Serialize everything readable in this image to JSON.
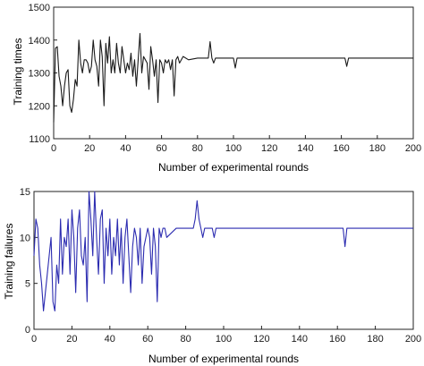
{
  "chart_data": [
    {
      "type": "line",
      "title": "",
      "xlabel": "Number of experimental rounds",
      "ylabel": "Training times",
      "xlim": [
        0,
        200
      ],
      "ylim": [
        1100,
        1500
      ],
      "x_ticks": [
        0,
        20,
        40,
        60,
        80,
        100,
        120,
        140,
        160,
        180,
        200
      ],
      "y_ticks": [
        1100,
        1200,
        1300,
        1400,
        1500
      ],
      "grid": false,
      "color": "#1a1a1a",
      "series": [
        {
          "x": [
            0,
            1,
            2,
            3,
            4,
            5,
            6,
            7,
            8,
            9,
            10,
            11,
            12,
            13,
            14,
            15,
            16,
            17,
            18,
            19,
            20,
            21,
            22,
            23,
            24,
            25,
            26,
            27,
            28,
            29,
            30,
            31,
            32,
            33,
            34,
            35,
            36,
            37,
            38,
            39,
            40,
            41,
            42,
            43,
            44,
            45,
            46,
            47,
            48,
            49,
            50,
            51,
            52,
            53,
            54,
            55,
            56,
            57,
            58,
            59,
            60,
            61,
            62,
            63,
            64,
            65,
            66,
            67,
            68,
            69,
            70,
            72,
            75,
            80,
            84,
            86,
            87,
            88,
            89,
            90,
            95,
            100,
            101,
            102,
            110,
            120,
            130,
            140,
            150,
            160,
            162,
            163,
            164,
            165,
            170,
            180,
            190,
            200
          ],
          "y": [
            1150,
            1375,
            1380,
            1290,
            1260,
            1200,
            1260,
            1300,
            1310,
            1200,
            1180,
            1220,
            1280,
            1260,
            1400,
            1330,
            1300,
            1340,
            1340,
            1330,
            1300,
            1320,
            1400,
            1340,
            1320,
            1260,
            1400,
            1350,
            1200,
            1390,
            1330,
            1410,
            1300,
            1340,
            1300,
            1390,
            1330,
            1300,
            1380,
            1340,
            1300,
            1330,
            1310,
            1360,
            1290,
            1340,
            1260,
            1340,
            1420,
            1300,
            1350,
            1340,
            1330,
            1250,
            1380,
            1340,
            1290,
            1340,
            1210,
            1340,
            1330,
            1300,
            1340,
            1330,
            1340,
            1310,
            1340,
            1230,
            1340,
            1350,
            1330,
            1350,
            1340,
            1345,
            1345,
            1345,
            1395,
            1345,
            1330,
            1345,
            1345,
            1345,
            1315,
            1345,
            1345,
            1345,
            1345,
            1345,
            1345,
            1345,
            1345,
            1320,
            1345,
            1345,
            1345,
            1345,
            1345,
            1345
          ]
        }
      ]
    },
    {
      "type": "line",
      "title": "",
      "xlabel": "Number of experimental rounds",
      "ylabel": "Training failures",
      "xlim": [
        0,
        200
      ],
      "ylim": [
        0,
        15
      ],
      "x_ticks": [
        0,
        20,
        40,
        60,
        80,
        100,
        120,
        140,
        160,
        180,
        200
      ],
      "y_ticks": [
        0,
        5,
        10,
        15
      ],
      "grid": false,
      "color": "#2b2bb0",
      "series": [
        {
          "x": [
            0,
            1,
            2,
            3,
            4,
            5,
            6,
            7,
            8,
            9,
            10,
            11,
            12,
            13,
            14,
            15,
            16,
            17,
            18,
            19,
            20,
            21,
            22,
            23,
            24,
            25,
            26,
            27,
            28,
            29,
            30,
            31,
            32,
            33,
            34,
            35,
            36,
            37,
            38,
            39,
            40,
            41,
            42,
            43,
            44,
            45,
            46,
            47,
            48,
            49,
            50,
            51,
            52,
            53,
            54,
            55,
            56,
            57,
            58,
            59,
            60,
            61,
            62,
            63,
            64,
            65,
            66,
            67,
            68,
            69,
            70,
            75,
            80,
            84,
            85,
            86,
            87,
            88,
            89,
            90,
            91,
            92,
            93,
            94,
            95,
            96,
            97,
            100,
            110,
            120,
            130,
            140,
            150,
            160,
            162,
            163,
            164,
            165,
            170,
            180,
            190,
            200
          ],
          "y": [
            8,
            12,
            11,
            7,
            5,
            2,
            4,
            6,
            8,
            10,
            3,
            2,
            7,
            5,
            12,
            6,
            10,
            9,
            12,
            6,
            13,
            10,
            4,
            11,
            13,
            8,
            7,
            10,
            3,
            15,
            12,
            8,
            15,
            10,
            6,
            12,
            13,
            5,
            11,
            8,
            12,
            6,
            10,
            8,
            12,
            7,
            11,
            5,
            10,
            12,
            8,
            4,
            9,
            11,
            10,
            7,
            11,
            5,
            9,
            10,
            11,
            10,
            6,
            11,
            9,
            3,
            11,
            10,
            11,
            11,
            10,
            11,
            11,
            11,
            12,
            14,
            12,
            11,
            10,
            11,
            11,
            11,
            11,
            11,
            10,
            11,
            11,
            11,
            11,
            11,
            11,
            11,
            11,
            11,
            11,
            11,
            9,
            11,
            11,
            11,
            11,
            11
          ]
        }
      ]
    }
  ]
}
